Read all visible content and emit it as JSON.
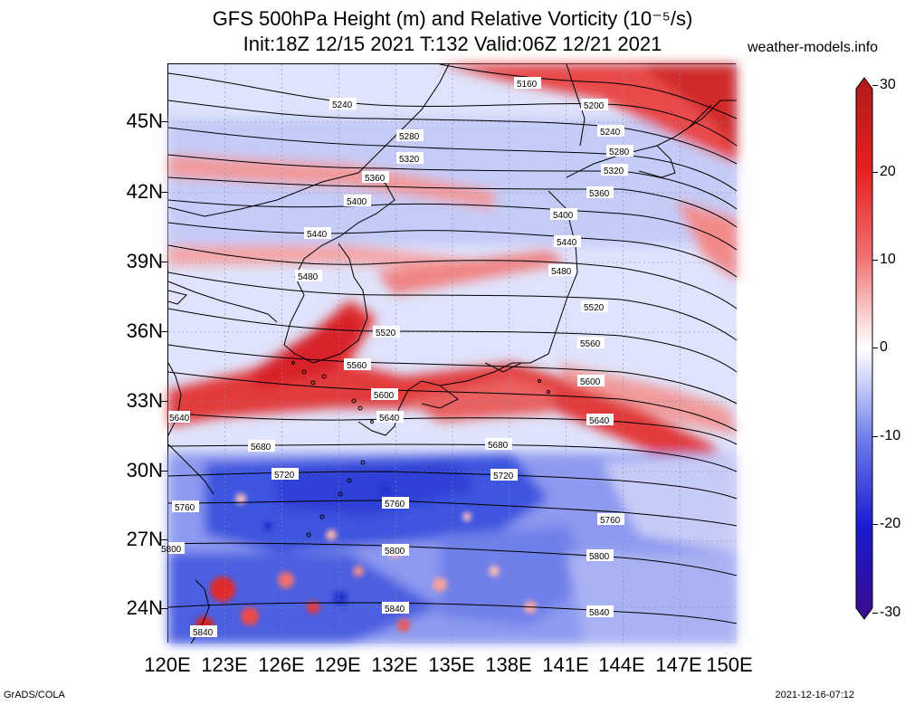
{
  "header": {
    "title_line1": "GFS 500hPa Height (m) and Relative Vorticity (10⁻⁵/s)",
    "title_line2": "Init:18Z 12/15 2021 T:132 Valid:06Z 12/21 2021",
    "site": "weather-models.info"
  },
  "footer": {
    "left": "GrADS/COLA",
    "right": "2021-12-16-07:12"
  },
  "axes": {
    "lat_labels": [
      "45N",
      "42N",
      "39N",
      "36N",
      "33N",
      "30N",
      "27N",
      "24N"
    ],
    "lon_labels": [
      "120E",
      "123E",
      "126E",
      "129E",
      "132E",
      "135E",
      "138E",
      "141E",
      "144E",
      "147E",
      "150E"
    ]
  },
  "colorbar": {
    "labels": [
      "30",
      "20",
      "10",
      "0",
      "-10",
      "-20",
      "-30"
    ],
    "colors": {
      "strong_pos": "#c0171d",
      "pos": "#f04040",
      "weak_pos": "#f6a0a0",
      "zero": "#ffffff",
      "weak_neg": "#b4bdf3",
      "neg": "#4a5ce0",
      "strong_neg": "#2a0a9a"
    }
  },
  "contour_labels": [
    "5160",
    "5200",
    "5240",
    "5240",
    "5280",
    "5280",
    "5320",
    "5320",
    "5360",
    "5360",
    "5400",
    "5400",
    "5440",
    "5440",
    "5480",
    "5480",
    "5520",
    "5520",
    "5560",
    "5560",
    "5600",
    "5600",
    "5640",
    "5640",
    "5640",
    "5680",
    "5680",
    "5720",
    "5720",
    "5760",
    "5760",
    "5760",
    "5800",
    "5800",
    "5800",
    "5840",
    "5840",
    "5840"
  ]
}
